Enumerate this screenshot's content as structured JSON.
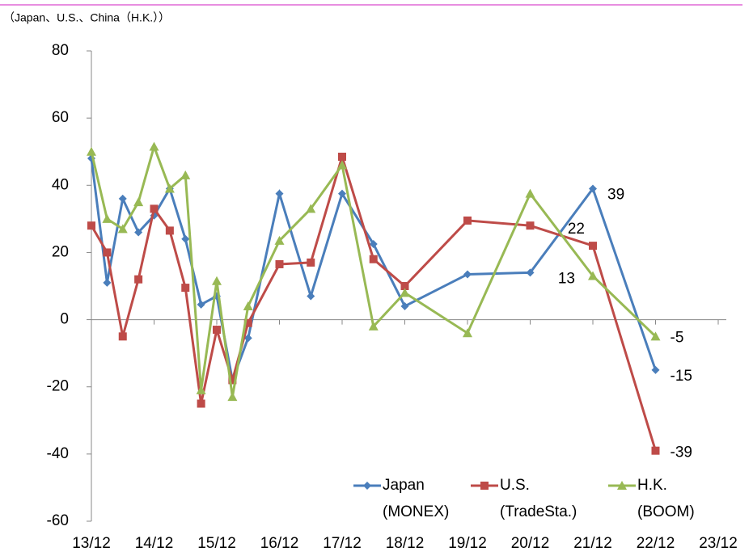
{
  "chart_data": {
    "type": "line",
    "subtitle": "（Japan、U.S.、China（H.K.））",
    "xlim": [
      13,
      23
    ],
    "xticks": [
      {
        "value": 13,
        "label": "13/12"
      },
      {
        "value": 14,
        "label": "14/12"
      },
      {
        "value": 15,
        "label": "15/12"
      },
      {
        "value": 16,
        "label": "16/12"
      },
      {
        "value": 17,
        "label": "17/12"
      },
      {
        "value": 18,
        "label": "18/12"
      },
      {
        "value": 19,
        "label": "19/12"
      },
      {
        "value": 20,
        "label": "20/12"
      },
      {
        "value": 21,
        "label": "21/12"
      },
      {
        "value": 22,
        "label": "22/12"
      },
      {
        "value": 23,
        "label": "23/12"
      }
    ],
    "ylim": [
      -60,
      80
    ],
    "yticks": [
      -60,
      -40,
      -20,
      0,
      20,
      40,
      60,
      80
    ],
    "series": [
      {
        "name": [
          "Japan",
          "(MONEX)"
        ],
        "color": "#4a7ebb",
        "marker": "diamond",
        "x": [
          13,
          13.25,
          13.5,
          13.75,
          14,
          14.25,
          14.5,
          14.75,
          15,
          15.25,
          15.5,
          16,
          16.5,
          17,
          17.5,
          18,
          19,
          20,
          21,
          22
        ],
        "values": [
          48,
          11,
          36,
          26,
          31,
          39,
          24,
          4.5,
          7,
          -18,
          -5.5,
          37.5,
          7,
          37.5,
          22.5,
          4,
          13.5,
          14,
          39,
          -15
        ],
        "value_labels": [
          null,
          null,
          null,
          null,
          null,
          null,
          null,
          null,
          null,
          null,
          null,
          null,
          null,
          null,
          null,
          null,
          null,
          null,
          "39",
          "-15"
        ]
      },
      {
        "name": [
          "U.S.",
          "(TradeSta.)"
        ],
        "color": "#be4b48",
        "marker": "square",
        "x": [
          13,
          13.25,
          13.5,
          13.75,
          14,
          14.25,
          14.5,
          14.75,
          15,
          15.25,
          15.5,
          16,
          16.5,
          17,
          17.5,
          18,
          19,
          20,
          21,
          22
        ],
        "values": [
          28,
          20,
          -5,
          12,
          33,
          26.5,
          9.5,
          -25,
          -3,
          -18,
          -1,
          16.5,
          17,
          48.5,
          18,
          10,
          29.5,
          28,
          22,
          -39
        ],
        "value_labels": [
          null,
          null,
          null,
          null,
          null,
          null,
          null,
          null,
          null,
          null,
          null,
          null,
          null,
          null,
          null,
          null,
          null,
          null,
          "22",
          "-39"
        ]
      },
      {
        "name": [
          "H.K.",
          "(BOOM)"
        ],
        "color": "#98b954",
        "marker": "triangle",
        "x": [
          13,
          13.25,
          13.5,
          13.75,
          14,
          14.25,
          14.5,
          14.75,
          15,
          15.25,
          15.5,
          16,
          16.5,
          17,
          17.5,
          18,
          19,
          20,
          21,
          22
        ],
        "values": [
          50,
          30,
          27,
          35,
          51.5,
          39,
          43,
          -21,
          11.5,
          -23,
          4,
          23.5,
          33,
          46,
          -2,
          8,
          -4,
          37.5,
          13,
          -5
        ],
        "value_labels": [
          null,
          null,
          null,
          null,
          null,
          null,
          null,
          null,
          null,
          null,
          null,
          null,
          null,
          null,
          null,
          null,
          null,
          null,
          "13",
          "-5"
        ]
      }
    ]
  }
}
